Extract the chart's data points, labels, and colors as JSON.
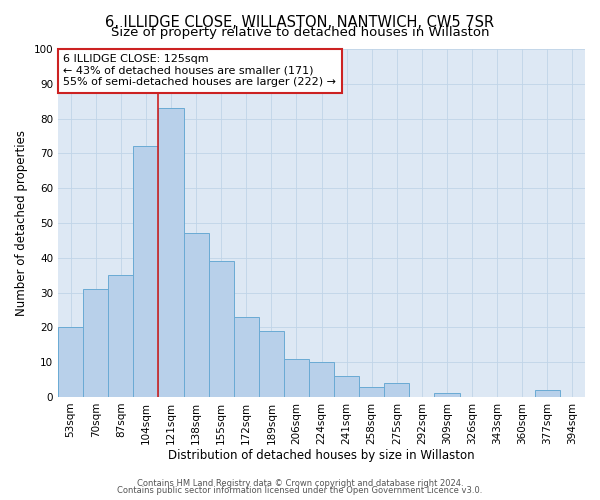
{
  "title": "6, ILLIDGE CLOSE, WILLASTON, NANTWICH, CW5 7SR",
  "subtitle": "Size of property relative to detached houses in Willaston",
  "xlabel": "Distribution of detached houses by size in Willaston",
  "ylabel": "Number of detached properties",
  "bar_labels": [
    "53sqm",
    "70sqm",
    "87sqm",
    "104sqm",
    "121sqm",
    "138sqm",
    "155sqm",
    "172sqm",
    "189sqm",
    "206sqm",
    "224sqm",
    "241sqm",
    "258sqm",
    "275sqm",
    "292sqm",
    "309sqm",
    "326sqm",
    "343sqm",
    "360sqm",
    "377sqm",
    "394sqm"
  ],
  "bar_values": [
    20,
    31,
    35,
    72,
    83,
    47,
    39,
    23,
    19,
    11,
    10,
    6,
    3,
    4,
    0,
    1,
    0,
    0,
    0,
    2,
    0
  ],
  "bar_color": "#b8d0ea",
  "bar_edge_color": "#6aaad4",
  "bar_linewidth": 0.7,
  "ylim": [
    0,
    100
  ],
  "yticks": [
    0,
    10,
    20,
    30,
    40,
    50,
    60,
    70,
    80,
    90,
    100
  ],
  "vline_color": "#cc2222",
  "vline_linewidth": 1.2,
  "annotation_text": "6 ILLIDGE CLOSE: 125sqm\n← 43% of detached houses are smaller (171)\n55% of semi-detached houses are larger (222) →",
  "annotation_box_color": "white",
  "annotation_box_edge_color": "#cc2222",
  "grid_color": "#c0d4e8",
  "background_color": "#dde8f4",
  "footer_line1": "Contains HM Land Registry data © Crown copyright and database right 2024.",
  "footer_line2": "Contains public sector information licensed under the Open Government Licence v3.0.",
  "title_fontsize": 10.5,
  "subtitle_fontsize": 9.5,
  "xlabel_fontsize": 8.5,
  "ylabel_fontsize": 8.5,
  "tick_fontsize": 7.5,
  "annotation_fontsize": 8.0,
  "footer_fontsize": 6.0
}
